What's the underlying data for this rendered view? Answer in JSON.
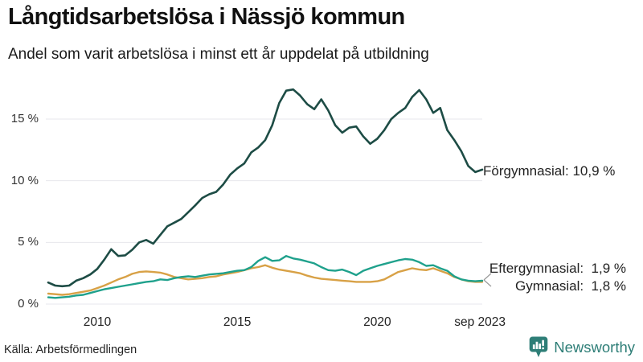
{
  "header": {
    "title": "Långtidsarbetslösa i Nässjö kommun",
    "subtitle": "Andel som varit arbetslösa i minst ett år uppdelat på utbildning"
  },
  "series_labels": {
    "forgymnasial": "Förgymnasial: 10,9 %",
    "eftergymnasial": "Eftergymnasial:  1,9 %",
    "gymnasial": "Gymnasial:  1,8 %"
  },
  "footer": {
    "source": "Källa: Arbetsförmedlingen",
    "logo_text": "Newsworthy"
  },
  "colors": {
    "forgymnasial": "#1d4c45",
    "eftergymnasial": "#1fa18c",
    "gymnasial": "#d8a146",
    "gridline": "#e7e7ec",
    "connector": "#999999",
    "logo_teal": "#2e7e77"
  },
  "chart_data": {
    "type": "line",
    "title": "Långtidsarbetslösa i Nässjö kommun",
    "subtitle": "Andel som varit arbetslösa i minst ett år uppdelat på utbildning",
    "unit": "%",
    "x_start": 2008.25,
    "x_step": 0.25,
    "x_end": 2023.75,
    "ylim": [
      0,
      18
    ],
    "grid": "horizontal",
    "legend_position": "end-of-line-labels",
    "x_ticks": [
      {
        "label": "2010",
        "year": 2010
      },
      {
        "label": "2015",
        "year": 2015
      },
      {
        "label": "2020",
        "year": 2020
      },
      {
        "label": "sep 2023",
        "year": 2023.667
      }
    ],
    "y_ticks": [
      {
        "label": "0 %",
        "value": 0
      },
      {
        "label": "5 %",
        "value": 5
      },
      {
        "label": "10 %",
        "value": 10
      },
      {
        "label": "15 %",
        "value": 15
      }
    ],
    "series": [
      {
        "name": "Förgymnasial",
        "end_value_label": "10,9 %",
        "color_key": "forgymnasial",
        "stroke_width": 2.6,
        "values": [
          1.75,
          1.5,
          1.45,
          1.5,
          1.9,
          2.1,
          2.4,
          2.85,
          3.6,
          4.45,
          3.9,
          3.95,
          4.4,
          5.0,
          5.2,
          4.9,
          5.6,
          6.3,
          6.6,
          6.9,
          7.45,
          8.0,
          8.6,
          8.9,
          9.1,
          9.7,
          10.5,
          11.0,
          11.4,
          12.3,
          12.7,
          13.3,
          14.5,
          16.3,
          17.3,
          17.4,
          16.9,
          16.2,
          15.8,
          16.6,
          15.7,
          14.5,
          13.9,
          14.3,
          14.4,
          13.6,
          13.0,
          13.4,
          14.1,
          15.0,
          15.5,
          15.9,
          16.8,
          17.35,
          16.6,
          15.5,
          15.9,
          14.1,
          13.3,
          12.4,
          11.2,
          10.7,
          10.9
        ]
      },
      {
        "name": "Eftergymnasial",
        "end_value_label": "1,9 %",
        "color_key": "eftergymnasial",
        "stroke_width": 2.4,
        "values": [
          0.55,
          0.5,
          0.55,
          0.6,
          0.7,
          0.75,
          0.9,
          1.05,
          1.2,
          1.3,
          1.4,
          1.5,
          1.6,
          1.7,
          1.8,
          1.85,
          2.0,
          1.95,
          2.1,
          2.2,
          2.25,
          2.2,
          2.3,
          2.4,
          2.45,
          2.5,
          2.6,
          2.7,
          2.75,
          3.0,
          3.5,
          3.8,
          3.5,
          3.55,
          3.9,
          3.7,
          3.6,
          3.45,
          3.3,
          3.0,
          2.75,
          2.7,
          2.8,
          2.6,
          2.35,
          2.7,
          2.9,
          3.1,
          3.25,
          3.4,
          3.55,
          3.65,
          3.6,
          3.4,
          3.1,
          3.15,
          2.9,
          2.7,
          2.25,
          2.0,
          1.9,
          1.85,
          1.9
        ]
      },
      {
        "name": "Gymnasial",
        "end_value_label": "1,8 %",
        "color_key": "gymnasial",
        "stroke_width": 2.4,
        "values": [
          0.85,
          0.8,
          0.75,
          0.8,
          0.9,
          1.0,
          1.1,
          1.3,
          1.5,
          1.75,
          2.0,
          2.2,
          2.45,
          2.6,
          2.65,
          2.6,
          2.55,
          2.4,
          2.2,
          2.1,
          2.0,
          2.05,
          2.1,
          2.2,
          2.25,
          2.4,
          2.5,
          2.6,
          2.75,
          2.9,
          3.0,
          3.15,
          2.95,
          2.8,
          2.7,
          2.6,
          2.5,
          2.3,
          2.15,
          2.05,
          2.0,
          1.95,
          1.9,
          1.85,
          1.8,
          1.8,
          1.8,
          1.85,
          2.0,
          2.3,
          2.6,
          2.75,
          2.9,
          2.8,
          2.75,
          2.9,
          2.7,
          2.5,
          2.2,
          2.0,
          1.85,
          1.8,
          1.8
        ]
      }
    ]
  }
}
